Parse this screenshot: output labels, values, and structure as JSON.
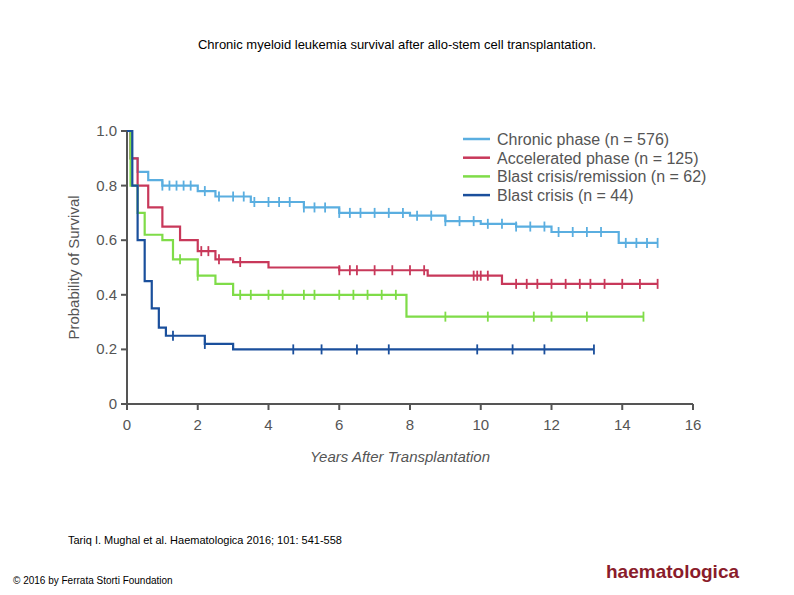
{
  "chart_data": {
    "type": "line",
    "title": "Chronic myeloid leukemia survival after allo-stem cell transplantation.",
    "x_label": "Years After Transplantation",
    "y_label": "Probability of Survival",
    "citation": "Tariq I. Mughal et al. Haematologica 2016; 101: 541-558",
    "copyright": "© 2016 by Ferrata Storti Foundation",
    "logo": "haematologica",
    "line_style": "step",
    "marker": "tick",
    "grid": false,
    "legend": "top-right",
    "xlim": [
      0,
      16
    ],
    "xticks": [
      0,
      2,
      4,
      6,
      8,
      10,
      12,
      14,
      16
    ],
    "ylim": [
      0,
      1
    ],
    "yticks": [
      0,
      0.2,
      0.4,
      0.6,
      0.8,
      {
        "value": 1,
        "label": "1.0"
      }
    ],
    "series": [
      {
        "name": "Chronic phase (n = 576)",
        "color": "#5aaee0",
        "x": [
          0,
          0.1,
          0.3,
          0.6,
          1,
          2,
          2.5,
          3.5,
          5,
          6,
          8,
          9,
          10,
          11,
          12,
          13.9,
          15
        ],
        "values": [
          1,
          0.9,
          0.85,
          0.82,
          0.8,
          0.78,
          0.76,
          0.74,
          0.72,
          0.7,
          0.69,
          0.67,
          0.66,
          0.65,
          0.63,
          0.59,
          0.59
        ],
        "censored": [
          1,
          1.2,
          1.4,
          1.6,
          1.8,
          2.2,
          2.6,
          3,
          3.3,
          3.6,
          4,
          4.3,
          4.6,
          5,
          5.3,
          5.6,
          6,
          6.3,
          6.6,
          7,
          7.4,
          7.8,
          8.2,
          8.6,
          9,
          9.4,
          9.8,
          10.2,
          10.6,
          11,
          11.4,
          11.8,
          12.2,
          12.6,
          13,
          13.4,
          14.1,
          14.4,
          14.7,
          15
        ]
      },
      {
        "name": "Accelerated phase (n = 125)",
        "color": "#c8385a",
        "x": [
          0,
          0.1,
          0.3,
          0.6,
          1,
          1.5,
          2,
          2.5,
          3,
          4,
          6,
          8.5,
          10.6,
          15
        ],
        "values": [
          1,
          0.9,
          0.8,
          0.72,
          0.65,
          0.6,
          0.56,
          0.53,
          0.52,
          0.5,
          0.49,
          0.47,
          0.44,
          0.44
        ],
        "censored": [
          2.1,
          2.3,
          2.6,
          3.2,
          6,
          6.3,
          6.5,
          7,
          7.5,
          8,
          8.4,
          9.8,
          9.9,
          10,
          10.2,
          11,
          11.3,
          11.6,
          12,
          12.4,
          12.8,
          13.1,
          13.5,
          14,
          14.5,
          15
        ]
      },
      {
        "name": "Blast crisis/remission (n = 62)",
        "color": "#7fdc48",
        "x": [
          0,
          0.1,
          0.3,
          0.5,
          1,
          1.3,
          2,
          2.5,
          3,
          7.9,
          14.6
        ],
        "values": [
          1,
          0.8,
          0.7,
          0.62,
          0.6,
          0.53,
          0.47,
          0.44,
          0.4,
          0.32,
          0.32
        ],
        "censored": [
          1.5,
          2,
          3.2,
          3.5,
          4,
          4.4,
          5,
          5.3,
          6,
          6.4,
          6.8,
          7.2,
          7.6,
          9,
          10.2,
          11.5,
          12,
          13,
          14.6
        ]
      },
      {
        "name": "Blast crisis (n = 44)",
        "color": "#1a4f9c",
        "x": [
          0,
          0.15,
          0.3,
          0.5,
          0.7,
          0.9,
          1.1,
          2.2,
          3,
          13.2
        ],
        "values": [
          1,
          0.8,
          0.6,
          0.45,
          0.35,
          0.28,
          0.25,
          0.22,
          0.2,
          0.2
        ],
        "censored": [
          1.3,
          2.2,
          4.7,
          5.5,
          6.5,
          7.4,
          9.9,
          10.9,
          11.8,
          13.2
        ]
      }
    ]
  }
}
